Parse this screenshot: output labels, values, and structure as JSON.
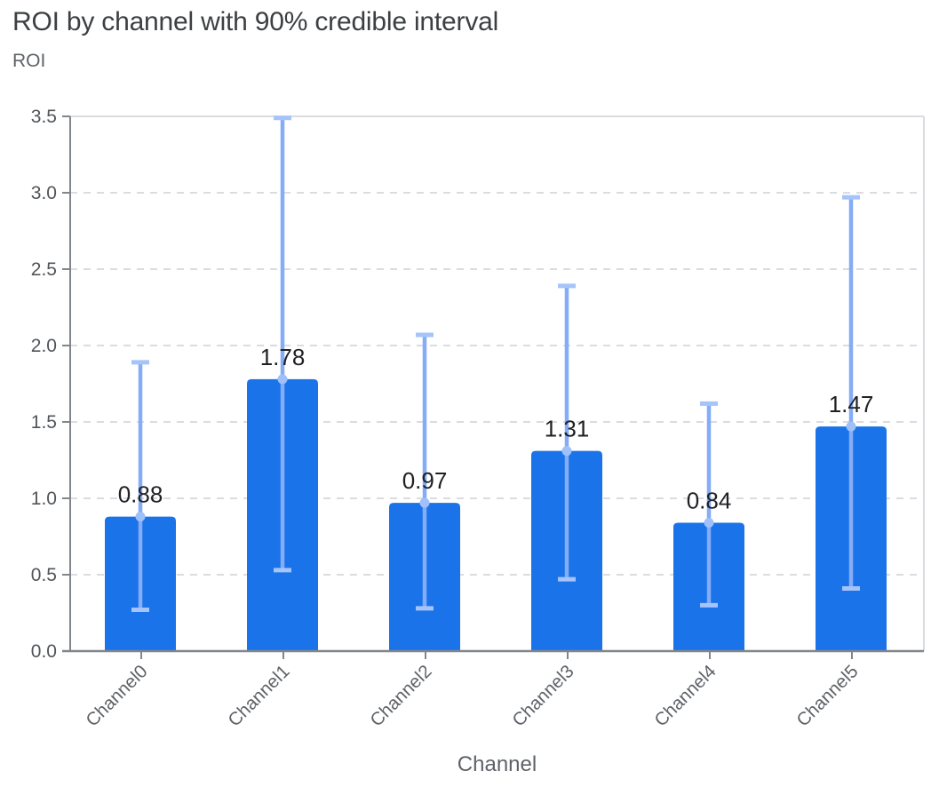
{
  "chart_data": {
    "type": "bar",
    "title": "ROI by channel with 90% credible interval",
    "ylabel": "ROI",
    "xlabel": "Channel",
    "categories": [
      "Channel0",
      "Channel1",
      "Channel2",
      "Channel3",
      "Channel4",
      "Channel5"
    ],
    "series": [
      {
        "name": "ROI",
        "values": [
          0.88,
          1.78,
          0.97,
          1.31,
          0.84,
          1.47
        ]
      }
    ],
    "bar_labels": [
      "0.88",
      "1.78",
      "0.97",
      "1.31",
      "0.84",
      "1.47"
    ],
    "error_bars": {
      "label": "90% credible interval",
      "lower": [
        0.27,
        0.53,
        0.28,
        0.47,
        0.3,
        0.41
      ],
      "upper": [
        1.89,
        3.49,
        2.07,
        2.39,
        1.62,
        2.97
      ]
    },
    "ylim": [
      0,
      3.5
    ],
    "ytick_labels": [
      "0.0",
      "0.5",
      "1.0",
      "1.5",
      "2.0",
      "2.5",
      "3.0",
      "3.5"
    ],
    "grid": {
      "horizontal": true,
      "style": "dashed"
    },
    "legend": {
      "visible": false
    },
    "colors": {
      "bar": "#1a73e8",
      "error_line": "#84acf7",
      "error_cap": "#a5c4fa",
      "mean_marker": "#9fc0f9",
      "grid": "#dadce0",
      "plot_border": "#dadce0",
      "axis": "#80868b",
      "title_text": "#3c4043",
      "muted_text": "#5f6368",
      "tick_text": "#515559",
      "value_text": "#202124"
    }
  }
}
